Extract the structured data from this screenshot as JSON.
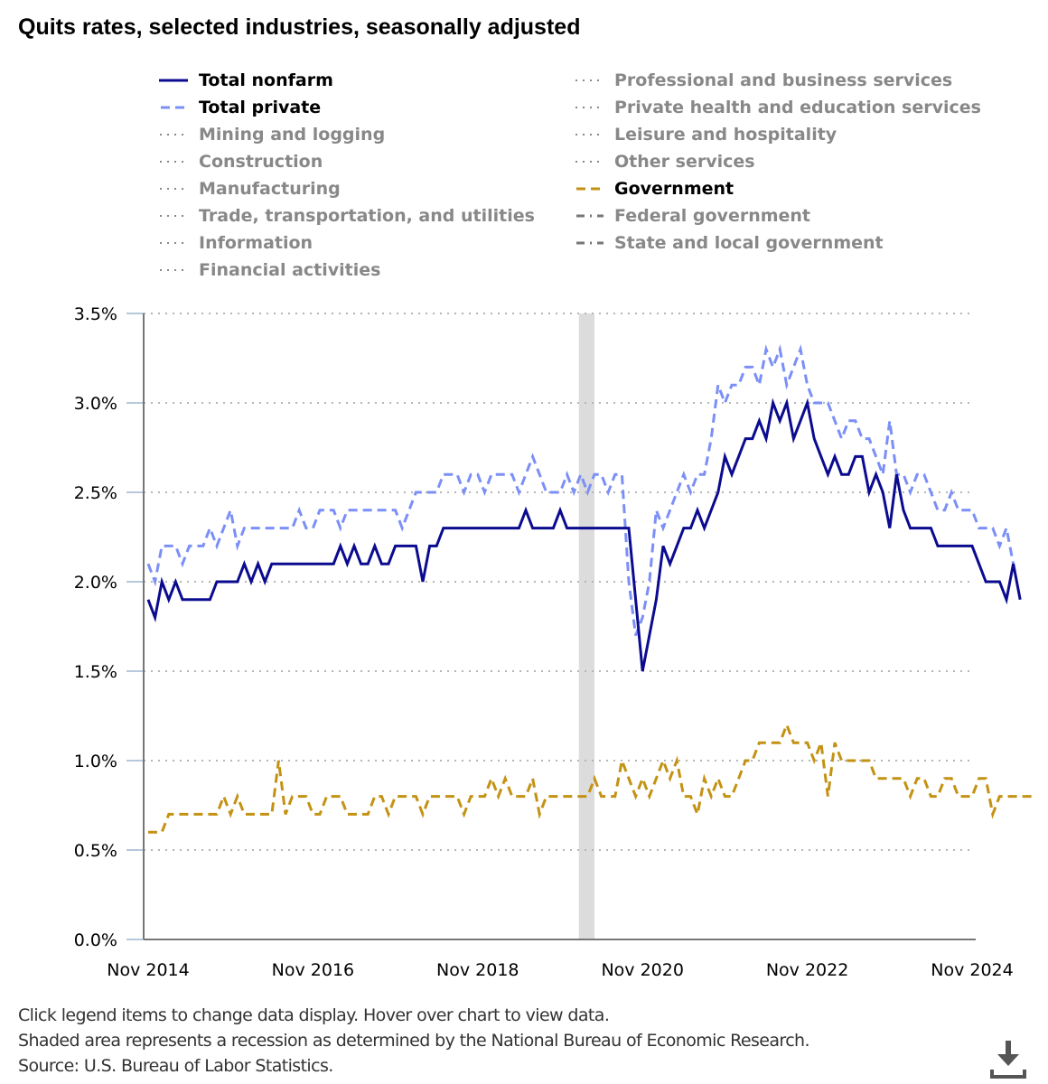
{
  "chart_data": {
    "type": "line",
    "title": "Quits rates, selected industries, seasonally adjusted",
    "xlabel": "",
    "ylabel": "",
    "x_start": "Nov 2014",
    "x_end": "Nov 2024",
    "x_ticks": [
      "Nov 2014",
      "Nov 2016",
      "Nov 2018",
      "Nov 2020",
      "Nov 2022",
      "Nov 2024"
    ],
    "y_ticks": [
      "0.0%",
      "0.5%",
      "1.0%",
      "1.5%",
      "2.0%",
      "2.5%",
      "3.0%",
      "3.5%"
    ],
    "ylim": [
      0,
      3.5
    ],
    "grid": "horizontal dotted",
    "legend_position": "top",
    "recession": {
      "start": "Feb 2020",
      "end": "Apr 2020"
    },
    "series": [
      {
        "name": "Total nonfarm",
        "color": "#0b0b8f",
        "style": "solid",
        "visible": true,
        "values": [
          1.9,
          1.8,
          2.0,
          1.9,
          2.0,
          1.9,
          1.9,
          1.9,
          1.9,
          1.9,
          2.0,
          2.0,
          2.0,
          2.0,
          2.1,
          2.0,
          2.1,
          2.0,
          2.1,
          2.1,
          2.1,
          2.1,
          2.1,
          2.1,
          2.1,
          2.1,
          2.1,
          2.1,
          2.2,
          2.1,
          2.2,
          2.1,
          2.1,
          2.2,
          2.1,
          2.1,
          2.2,
          2.2,
          2.2,
          2.2,
          2.0,
          2.2,
          2.2,
          2.3,
          2.3,
          2.3,
          2.3,
          2.3,
          2.3,
          2.3,
          2.3,
          2.3,
          2.3,
          2.3,
          2.3,
          2.4,
          2.3,
          2.3,
          2.3,
          2.3,
          2.4,
          2.3,
          2.3,
          2.3,
          2.3,
          2.3,
          2.3,
          2.3,
          2.3,
          2.3,
          2.3,
          1.9,
          1.5,
          1.7,
          1.9,
          2.2,
          2.1,
          2.2,
          2.3,
          2.3,
          2.4,
          2.3,
          2.4,
          2.5,
          2.7,
          2.6,
          2.7,
          2.8,
          2.8,
          2.9,
          2.8,
          3.0,
          2.9,
          3.0,
          2.8,
          2.9,
          3.0,
          2.8,
          2.7,
          2.6,
          2.7,
          2.6,
          2.6,
          2.7,
          2.7,
          2.5,
          2.6,
          2.5,
          2.3,
          2.6,
          2.4,
          2.3,
          2.3,
          2.3,
          2.3,
          2.2,
          2.2,
          2.2,
          2.2,
          2.2,
          2.2,
          2.1,
          2.0,
          2.0,
          2.0,
          1.9,
          2.1,
          1.9
        ]
      },
      {
        "name": "Total private",
        "color": "#7b8ff7",
        "style": "dashed",
        "visible": true,
        "values": [
          2.1,
          2.0,
          2.2,
          2.2,
          2.2,
          2.1,
          2.2,
          2.2,
          2.2,
          2.3,
          2.2,
          2.3,
          2.4,
          2.2,
          2.3,
          2.3,
          2.3,
          2.3,
          2.3,
          2.3,
          2.3,
          2.3,
          2.4,
          2.3,
          2.3,
          2.4,
          2.4,
          2.4,
          2.3,
          2.4,
          2.4,
          2.4,
          2.4,
          2.4,
          2.4,
          2.4,
          2.4,
          2.3,
          2.4,
          2.5,
          2.5,
          2.5,
          2.5,
          2.6,
          2.6,
          2.6,
          2.5,
          2.6,
          2.6,
          2.5,
          2.6,
          2.6,
          2.6,
          2.6,
          2.5,
          2.6,
          2.7,
          2.6,
          2.5,
          2.5,
          2.5,
          2.6,
          2.5,
          2.6,
          2.5,
          2.6,
          2.6,
          2.5,
          2.6,
          2.6,
          2.0,
          1.7,
          1.8,
          2.0,
          2.4,
          2.3,
          2.4,
          2.5,
          2.6,
          2.5,
          2.6,
          2.6,
          2.8,
          3.1,
          3.0,
          3.1,
          3.1,
          3.2,
          3.2,
          3.1,
          3.3,
          3.2,
          3.3,
          3.1,
          3.2,
          3.3,
          3.1,
          3.0,
          3.0,
          3.0,
          2.9,
          2.8,
          2.9,
          2.9,
          2.8,
          2.8,
          2.7,
          2.6,
          2.9,
          2.6,
          2.6,
          2.5,
          2.6,
          2.6,
          2.5,
          2.4,
          2.4,
          2.5,
          2.4,
          2.4,
          2.4,
          2.3,
          2.3,
          2.3,
          2.2,
          2.3,
          2.1
        ]
      },
      {
        "name": "Government",
        "color": "#c49213",
        "style": "dashed",
        "visible": true,
        "values": [
          0.6,
          0.6,
          0.6,
          0.7,
          0.7,
          0.7,
          0.7,
          0.7,
          0.7,
          0.7,
          0.7,
          0.8,
          0.7,
          0.8,
          0.7,
          0.7,
          0.7,
          0.7,
          0.7,
          1.0,
          0.7,
          0.8,
          0.8,
          0.8,
          0.7,
          0.7,
          0.8,
          0.8,
          0.8,
          0.7,
          0.7,
          0.7,
          0.7,
          0.8,
          0.8,
          0.7,
          0.8,
          0.8,
          0.8,
          0.8,
          0.7,
          0.8,
          0.8,
          0.8,
          0.8,
          0.8,
          0.7,
          0.8,
          0.8,
          0.8,
          0.9,
          0.8,
          0.9,
          0.8,
          0.8,
          0.8,
          0.9,
          0.7,
          0.8,
          0.8,
          0.8,
          0.8,
          0.8,
          0.8,
          0.8,
          0.9,
          0.8,
          0.8,
          0.8,
          1.0,
          0.9,
          0.8,
          0.9,
          0.8,
          0.9,
          1.0,
          0.9,
          1.0,
          0.8,
          0.8,
          0.7,
          0.9,
          0.8,
          0.9,
          0.8,
          0.8,
          0.9,
          1.0,
          1.0,
          1.1,
          1.1,
          1.1,
          1.1,
          1.2,
          1.1,
          1.1,
          1.1,
          1.0,
          1.1,
          0.8,
          1.1,
          1.0,
          1.0,
          1.0,
          1.0,
          1.0,
          0.9,
          0.9,
          0.9,
          0.9,
          0.9,
          0.8,
          0.9,
          0.9,
          0.8,
          0.8,
          0.9,
          0.9,
          0.8,
          0.8,
          0.8,
          0.9,
          0.9,
          0.7,
          0.8,
          0.8,
          0.8,
          0.8,
          0.8,
          0.8
        ]
      },
      {
        "name": "Mining and logging",
        "visible": false
      },
      {
        "name": "Construction",
        "visible": false
      },
      {
        "name": "Manufacturing",
        "visible": false
      },
      {
        "name": "Trade, transportation, and utilities",
        "visible": false
      },
      {
        "name": "Information",
        "visible": false
      },
      {
        "name": "Financial activities",
        "visible": false
      },
      {
        "name": "Professional and business services",
        "visible": false
      },
      {
        "name": "Private health and education services",
        "visible": false
      },
      {
        "name": "Leisure and hospitality",
        "visible": false
      },
      {
        "name": "Other services",
        "visible": false
      },
      {
        "name": "Federal government",
        "visible": false
      },
      {
        "name": "State and local government",
        "visible": false
      }
    ]
  },
  "legend": {
    "left": [
      {
        "label": "Total nonfarm",
        "active": true,
        "swatch": "solid",
        "color": "#0b0b8f"
      },
      {
        "label": "Total private",
        "active": true,
        "swatch": "dashed",
        "color": "#7b8ff7"
      },
      {
        "label": "Mining and logging",
        "active": false,
        "swatch": "dotted",
        "color": "#888888"
      },
      {
        "label": "Construction",
        "active": false,
        "swatch": "dotted",
        "color": "#888888"
      },
      {
        "label": "Manufacturing",
        "active": false,
        "swatch": "dotted",
        "color": "#888888"
      },
      {
        "label": "Trade, transportation, and utilities",
        "active": false,
        "swatch": "dotted",
        "color": "#888888"
      },
      {
        "label": "Information",
        "active": false,
        "swatch": "dotted",
        "color": "#888888"
      },
      {
        "label": "Financial activities",
        "active": false,
        "swatch": "dotted",
        "color": "#888888"
      }
    ],
    "right": [
      {
        "label": "Professional and business services",
        "active": false,
        "swatch": "dotted",
        "color": "#888888"
      },
      {
        "label": "Private health and education services",
        "active": false,
        "swatch": "dotted",
        "color": "#888888"
      },
      {
        "label": "Leisure and hospitality",
        "active": false,
        "swatch": "dotted",
        "color": "#888888"
      },
      {
        "label": "Other services",
        "active": false,
        "swatch": "dotted",
        "color": "#888888"
      },
      {
        "label": "Government",
        "active": true,
        "swatch": "dashed",
        "color": "#c49213"
      },
      {
        "label": "Federal government",
        "active": false,
        "swatch": "dashdot",
        "color": "#777777"
      },
      {
        "label": "State and local government",
        "active": false,
        "swatch": "dashdot",
        "color": "#777777"
      }
    ]
  },
  "footer": {
    "line1": "Click legend items to change data display. Hover over chart to view data.",
    "line2": "Shaded area represents a recession as determined by the National Bureau of Economic Research.",
    "line3": "Source: U.S. Bureau of Labor Statistics."
  },
  "download_icon": "download-icon"
}
